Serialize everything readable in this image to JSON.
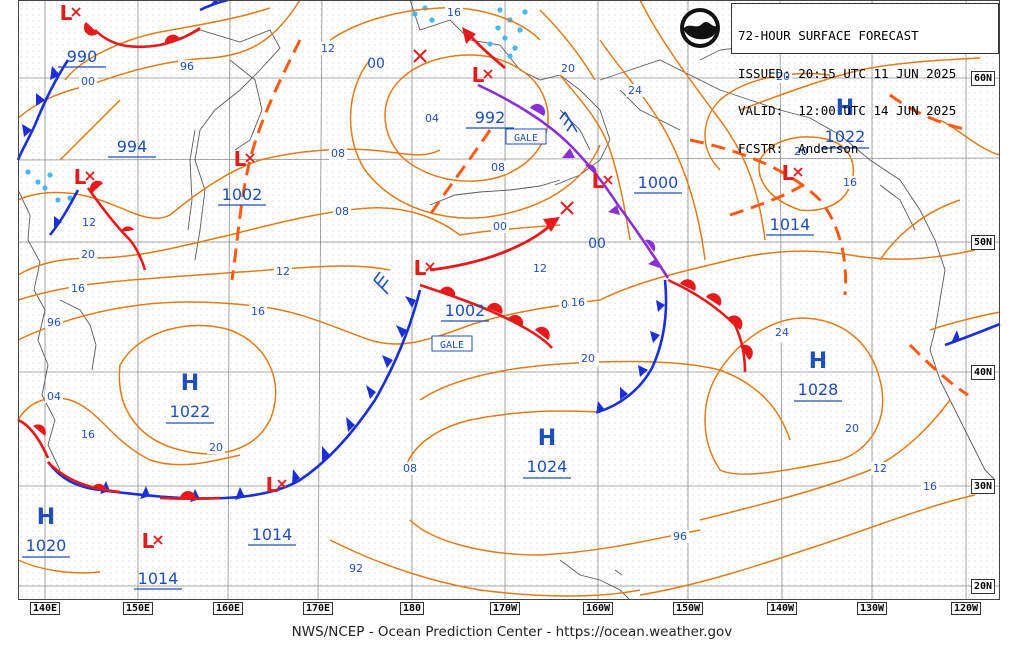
{
  "header": {
    "lines": [
      "72-HOUR SURFACE FORECAST",
      "ISSUED: 20:15 UTC 11 JUN 2025",
      "VALID:  12:00 UTC 14 JUN 2025",
      "FCSTR:  Anderson"
    ]
  },
  "logo_text": "NOAA",
  "footer": "NWS/NCEP - Ocean Prediction Center - https://ocean.weather.gov",
  "lat_labels": [
    "60N",
    "50N",
    "40N",
    "30N",
    "20N"
  ],
  "lon_labels": [
    "140E",
    "150E",
    "160E",
    "170E",
    "180",
    "170W",
    "160W",
    "150W",
    "140W",
    "130W",
    "120W"
  ],
  "highs": [
    {
      "pressure": "1022"
    },
    {
      "pressure": "1022"
    },
    {
      "pressure": "1028"
    },
    {
      "pressure": "1024"
    },
    {
      "pressure": "1020"
    }
  ],
  "lows": [
    {
      "pressure": "990"
    },
    {
      "pressure": "994"
    },
    {
      "pressure": "1002"
    },
    {
      "pressure": "992"
    },
    {
      "pressure": "1000"
    },
    {
      "pressure": "1014"
    },
    {
      "pressure": "1002"
    },
    {
      "pressure": "1014"
    },
    {
      "pressure": "1014"
    }
  ],
  "gale_labels": [
    "GALE",
    "GALE"
  ],
  "lead_labels": [
    "00",
    "00"
  ],
  "isobar_labels": [
    "92",
    "96",
    "00",
    "96",
    "04",
    "08",
    "12",
    "16",
    "20",
    "24",
    "20",
    "16",
    "04",
    "08",
    "12",
    "16",
    "20",
    "00",
    "96",
    "00",
    "04",
    "08",
    "96",
    "92",
    "12",
    "16",
    "20",
    "20",
    "20",
    "20",
    "16",
    "24",
    "16",
    "20",
    "12",
    "04",
    "08",
    "12",
    "16",
    "20",
    "24",
    "16"
  ],
  "colors": {
    "isobar": "#e07b1a",
    "high_low_blue": "#1f4fb8",
    "low_red": "#e31b1b",
    "cold_front": "#1a2fd6",
    "warm_front": "#e61a1a",
    "occluded_front": "#8b2fd6",
    "trough": "#ff5a14",
    "ice": "#47b7ef",
    "grid": "#8c8c8c",
    "coast": "#666666"
  }
}
